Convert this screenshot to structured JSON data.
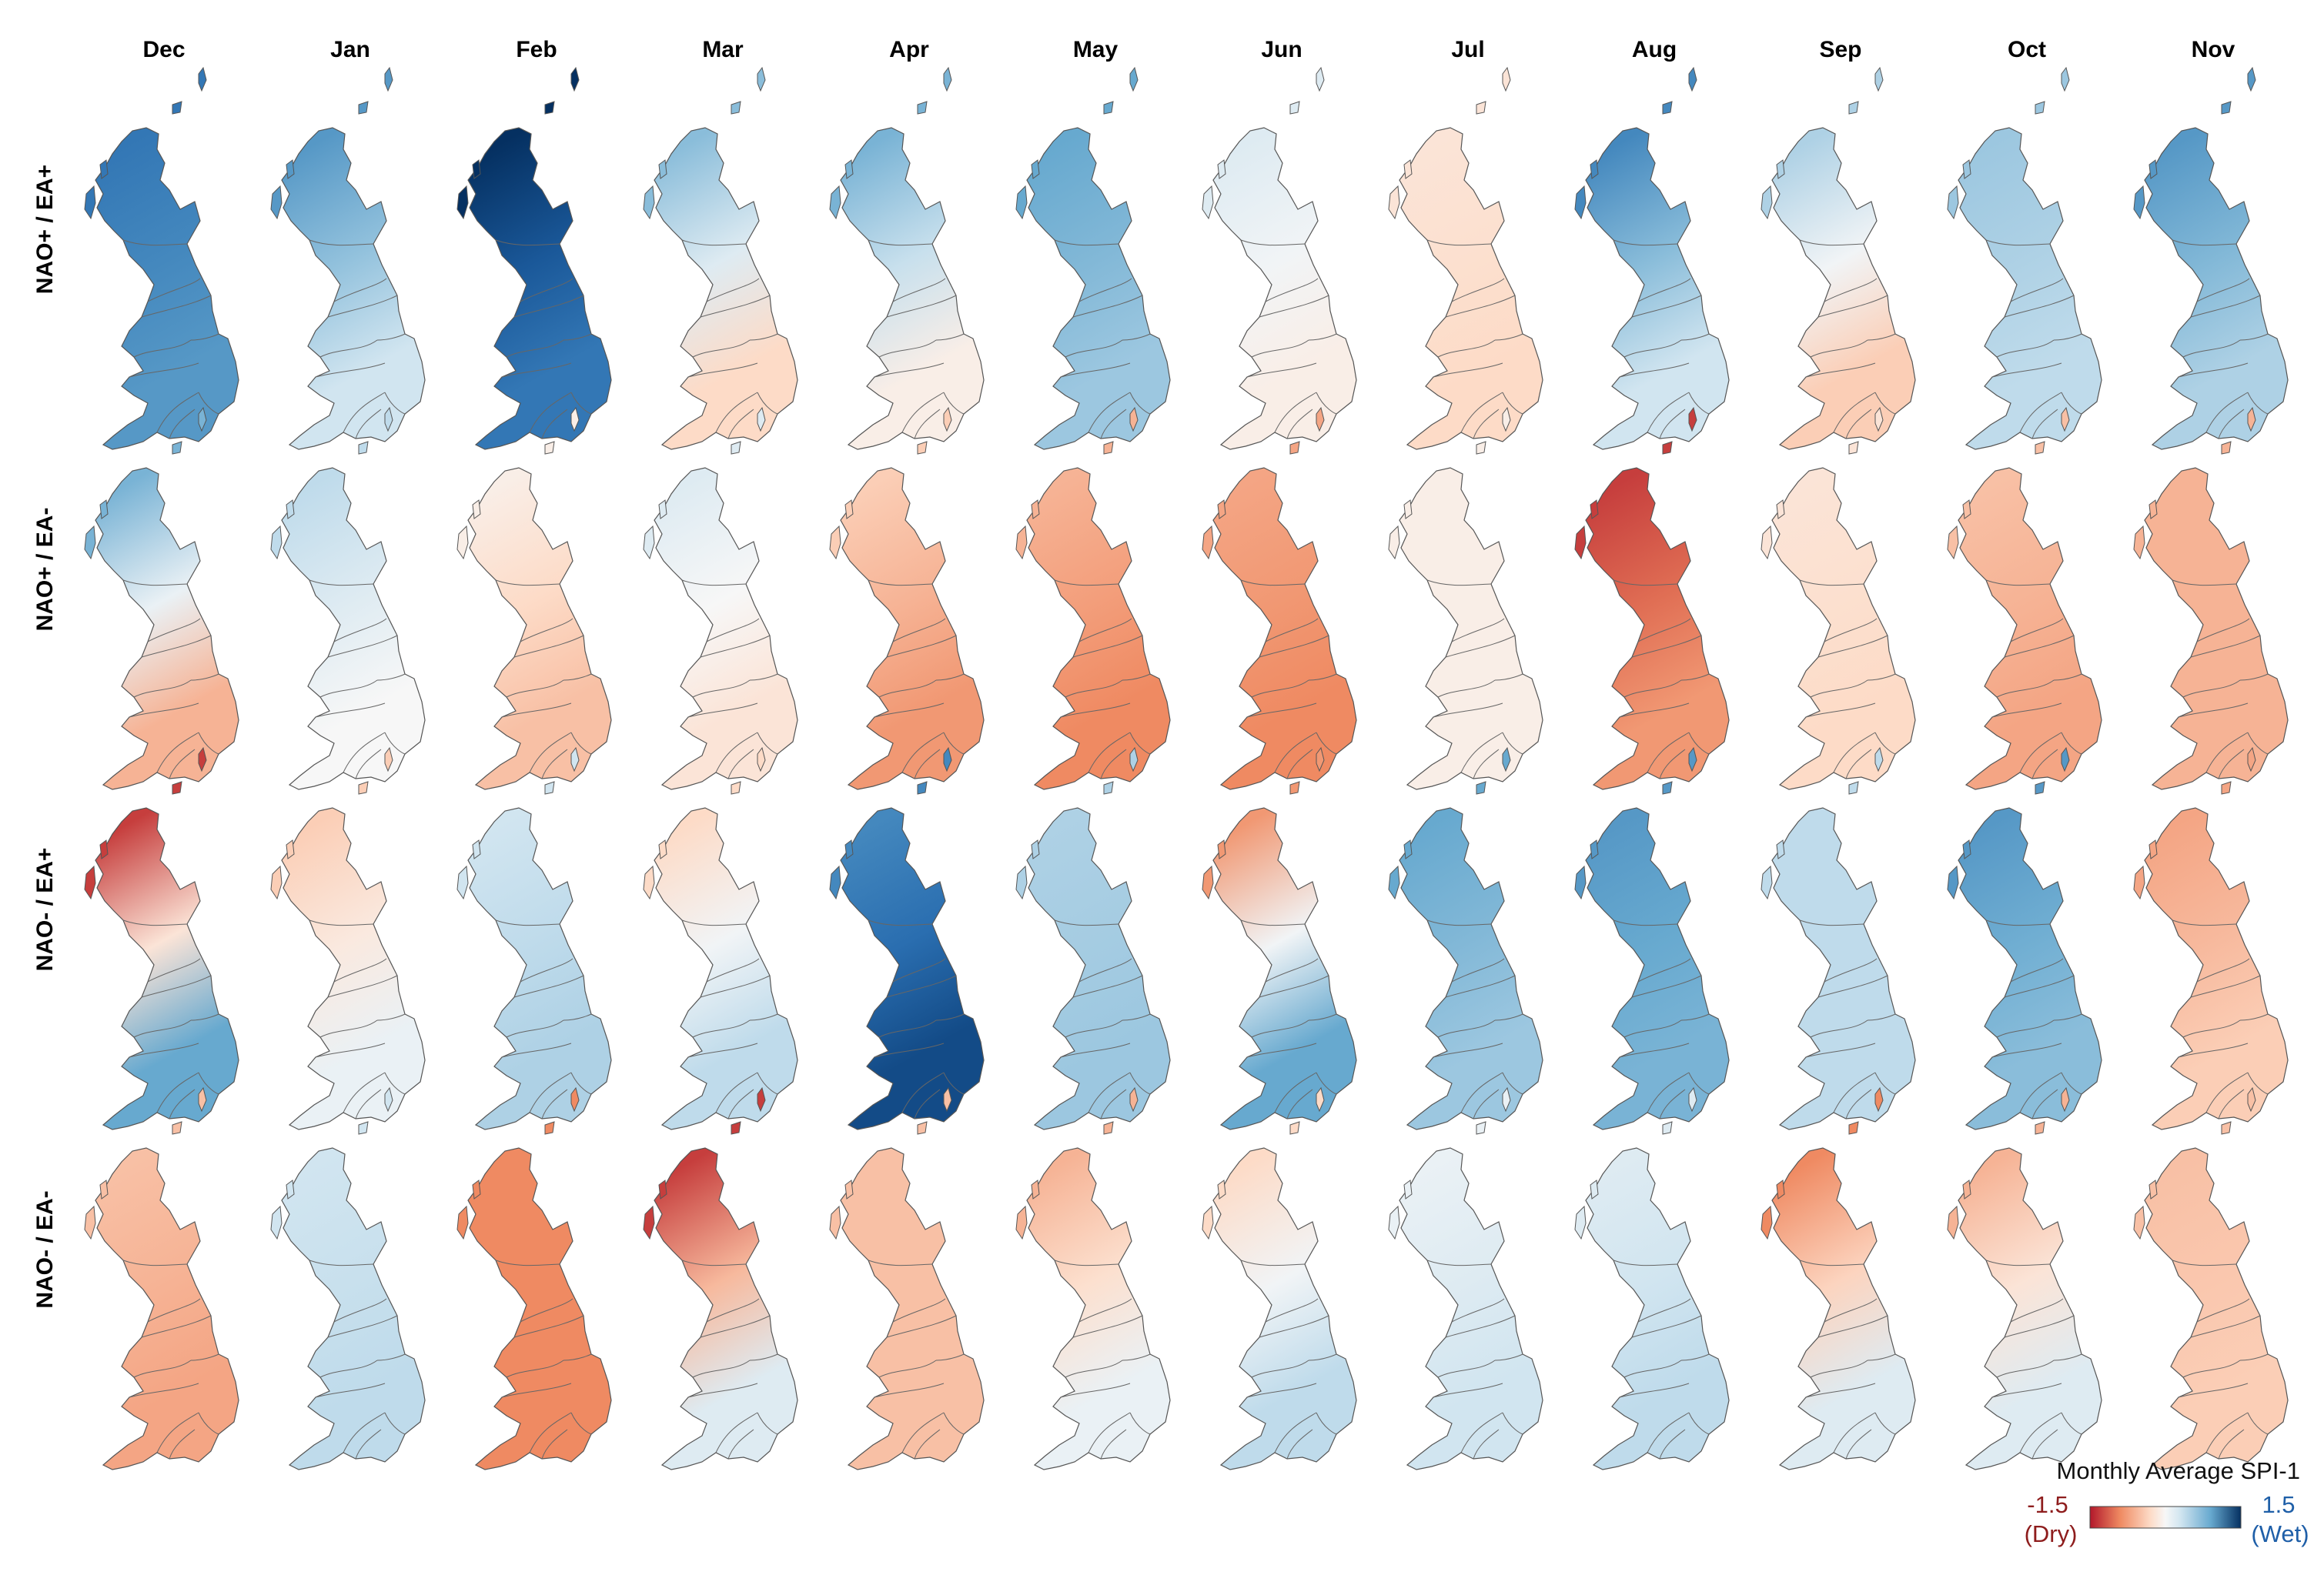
{
  "months": [
    "Dec",
    "Jan",
    "Feb",
    "Mar",
    "Apr",
    "May",
    "Jun",
    "Jul",
    "Aug",
    "Sep",
    "Oct",
    "Nov"
  ],
  "rows": [
    {
      "label": "NAO+ / EA+",
      "values": [
        {
          "n": 1.2,
          "s": 1.0
        },
        {
          "n": 1.0,
          "s": 0.3
        },
        {
          "n": 1.5,
          "s": 1.2
        },
        {
          "n": 0.7,
          "s": -0.3
        },
        {
          "n": 0.8,
          "s": -0.1
        },
        {
          "n": 0.9,
          "s": 0.6
        },
        {
          "n": 0.2,
          "s": -0.1
        },
        {
          "n": -0.2,
          "s": -0.3
        },
        {
          "n": 1.1,
          "s": 0.3
        },
        {
          "n": 0.5,
          "s": -0.4
        },
        {
          "n": 0.6,
          "s": 0.4
        },
        {
          "n": 1.0,
          "s": 0.5
        }
      ]
    },
    {
      "label": "NAO+ / EA-",
      "values": [
        {
          "n": 0.8,
          "s": -0.6
        },
        {
          "n": 0.4,
          "s": 0.0
        },
        {
          "n": -0.1,
          "s": -0.5
        },
        {
          "n": 0.2,
          "s": -0.2
        },
        {
          "n": -0.4,
          "s": -0.8
        },
        {
          "n": -0.6,
          "s": -0.9
        },
        {
          "n": -0.7,
          "s": -0.9
        },
        {
          "n": -0.1,
          "s": -0.1
        },
        {
          "n": -1.3,
          "s": -0.8
        },
        {
          "n": -0.2,
          "s": -0.3
        },
        {
          "n": -0.5,
          "s": -0.7
        },
        {
          "n": -0.6,
          "s": -0.6
        }
      ]
    },
    {
      "label": "NAO- / EA+",
      "values": [
        {
          "n": -1.3,
          "s": 0.9
        },
        {
          "n": -0.4,
          "s": 0.1
        },
        {
          "n": 0.3,
          "s": 0.5
        },
        {
          "n": -0.3,
          "s": 0.4
        },
        {
          "n": 1.1,
          "s": 1.4
        },
        {
          "n": 0.5,
          "s": 0.6
        },
        {
          "n": -0.8,
          "s": 0.9
        },
        {
          "n": 0.9,
          "s": 0.6
        },
        {
          "n": 1.0,
          "s": 0.8
        },
        {
          "n": 0.4,
          "s": 0.4
        },
        {
          "n": 1.0,
          "s": 0.7
        },
        {
          "n": -0.7,
          "s": -0.4
        }
      ]
    },
    {
      "label": "NAO- / EA-",
      "values": [
        {
          "n": -0.5,
          "s": -0.7
        },
        {
          "n": 0.3,
          "s": 0.4
        },
        {
          "n": -0.9,
          "s": -0.9
        },
        {
          "n": -1.3,
          "s": 0.2
        },
        {
          "n": -0.5,
          "s": -0.5
        },
        {
          "n": -0.6,
          "s": 0.1
        },
        {
          "n": -0.3,
          "s": 0.4
        },
        {
          "n": 0.1,
          "s": 0.3
        },
        {
          "n": 0.2,
          "s": 0.4
        },
        {
          "n": -0.9,
          "s": 0.2
        },
        {
          "n": -0.6,
          "s": 0.2
        },
        {
          "n": -0.5,
          "s": -0.4
        }
      ]
    }
  ],
  "legend": {
    "title": "Monthly Average SPI-1",
    "min_value": "-1.5",
    "min_label": "(Dry)",
    "max_value": "1.5",
    "max_label": "(Wet)",
    "range": [
      -1.5,
      1.5
    ]
  },
  "colors": {
    "dry_strong": "#b2182b",
    "dry": "#ef8a62",
    "dry_light": "#fddbc7",
    "neutral": "#f7f7f7",
    "wet_light": "#d1e5f0",
    "wet": "#67a9cf",
    "wet_strong": "#2166ac",
    "wet_darkest": "#053061"
  }
}
